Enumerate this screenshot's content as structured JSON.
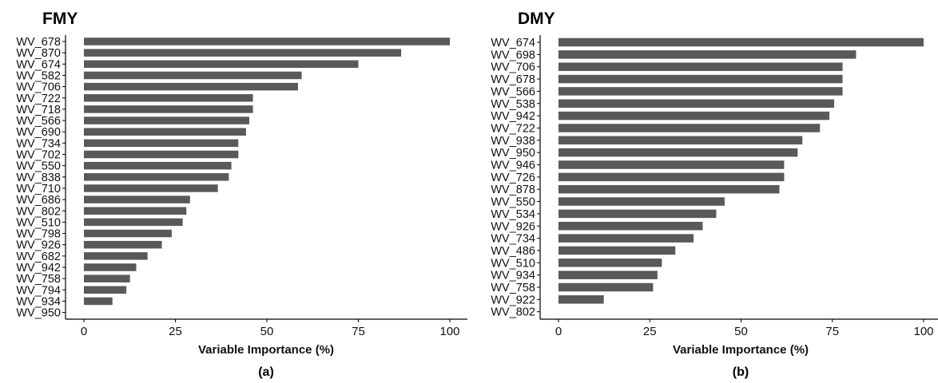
{
  "chart_data": [
    {
      "type": "bar",
      "orientation": "horizontal",
      "title": "FMY",
      "xlabel": "Variable Importance (%)",
      "caption": "(a)",
      "xlim": [
        0,
        100
      ],
      "xticks": [
        "0",
        "25",
        "50",
        "75",
        "100"
      ],
      "categories": [
        "WV_678",
        "WV_870",
        "WV_674",
        "WV_582",
        "WV_706",
        "WV_722",
        "WV_718",
        "WV_566",
        "WV_690",
        "WV_734",
        "WV_702",
        "WV_550",
        "WV_838",
        "WV_710",
        "WV_686",
        "WV_802",
        "WV_510",
        "WV_798",
        "WV_926",
        "WV_682",
        "WV_942",
        "WV_758",
        "WV_794",
        "WV_934",
        "WV_950"
      ],
      "values": [
        100,
        86.7,
        75.0,
        59.5,
        58.5,
        46.2,
        46.2,
        45.2,
        44.3,
        42.2,
        42.2,
        40.3,
        39.6,
        36.6,
        29.0,
        28.0,
        27.0,
        24.0,
        21.3,
        17.4,
        14.3,
        12.6,
        11.6,
        7.8,
        0
      ],
      "bar_color": "#595959"
    },
    {
      "type": "bar",
      "orientation": "horizontal",
      "title": "DMY",
      "xlabel": "Variable Importance (%)",
      "caption": "(b)",
      "xlim": [
        0,
        100
      ],
      "xticks": [
        "0",
        "25",
        "50",
        "75",
        "100"
      ],
      "categories": [
        "WV_674",
        "WV_698",
        "WV_706",
        "WV_678",
        "WV_566",
        "WV_538",
        "WV_942",
        "WV_722",
        "WV_938",
        "WV_950",
        "WV_946",
        "WV_726",
        "WV_878",
        "WV_550",
        "WV_534",
        "WV_926",
        "WV_734",
        "WV_486",
        "WV_510",
        "WV_934",
        "WV_758",
        "WV_922",
        "WV_802"
      ],
      "values": [
        100,
        81.5,
        77.8,
        77.8,
        77.8,
        75.5,
        74.2,
        71.6,
        66.8,
        65.5,
        61.8,
        61.8,
        60.5,
        45.5,
        43.2,
        39.5,
        37.0,
        32.0,
        28.3,
        27.1,
        25.9,
        12.4,
        0
      ],
      "bar_color": "#595959"
    }
  ]
}
